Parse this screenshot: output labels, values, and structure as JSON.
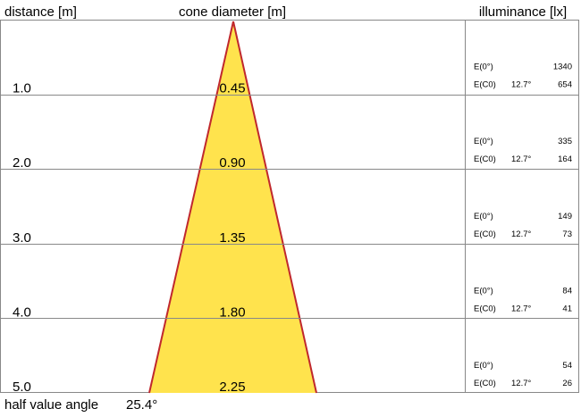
{
  "headers": {
    "distance": "distance [m]",
    "diameter": "cone diameter [m]",
    "illuminance": "illuminance [lx]"
  },
  "rows": [
    {
      "distance": "1.0",
      "diameter": "0.45",
      "e0_label": "E(0°)",
      "e0": "1340",
      "ec0_label": "E(C0)",
      "angle": "12.7°",
      "ec0": "654"
    },
    {
      "distance": "2.0",
      "diameter": "0.90",
      "e0_label": "E(0°)",
      "e0": "335",
      "ec0_label": "E(C0)",
      "angle": "12.7°",
      "ec0": "164"
    },
    {
      "distance": "3.0",
      "diameter": "1.35",
      "e0_label": "E(0°)",
      "e0": "149",
      "ec0_label": "E(C0)",
      "angle": "12.7°",
      "ec0": "73"
    },
    {
      "distance": "4.0",
      "diameter": "1.80",
      "e0_label": "E(0°)",
      "e0": "84",
      "ec0_label": "E(C0)",
      "angle": "12.7°",
      "ec0": "41"
    },
    {
      "distance": "5.0",
      "diameter": "2.25",
      "e0_label": "E(0°)",
      "e0": "54",
      "ec0_label": "E(C0)",
      "angle": "12.7°",
      "ec0": "26"
    }
  ],
  "footer": {
    "label": "half value angle",
    "value": "25.4°"
  }
}
